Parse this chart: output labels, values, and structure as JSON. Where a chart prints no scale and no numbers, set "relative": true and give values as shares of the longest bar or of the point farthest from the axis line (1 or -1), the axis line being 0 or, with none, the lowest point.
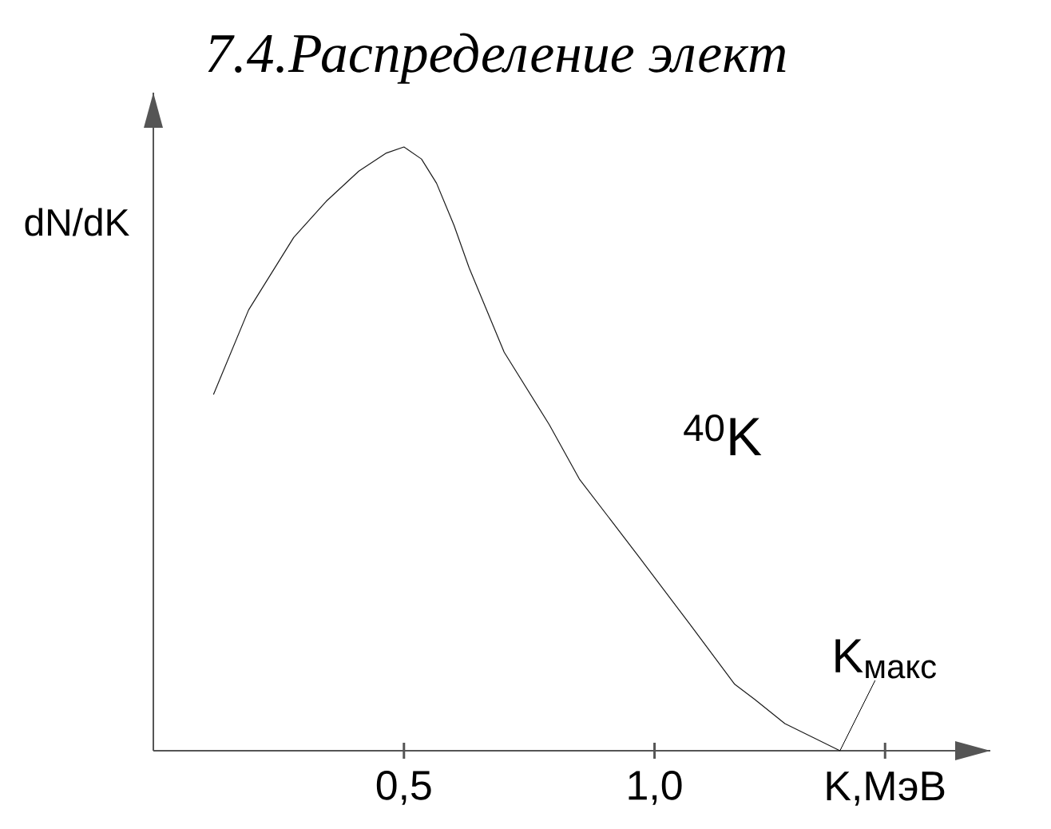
{
  "chart_data": {
    "type": "line",
    "title": "7.4.Распределение   элект",
    "xlabel": "K,МэВ",
    "ylabel": "dN/dK",
    "relative": true,
    "x": [
      0.12,
      0.19,
      0.28,
      0.345,
      0.41,
      0.465,
      0.5,
      0.535,
      0.565,
      0.6,
      0.63,
      0.7,
      0.79,
      0.85,
      0.97,
      1.07,
      1.16,
      1.2,
      1.26,
      1.37
    ],
    "series": [
      {
        "color": "#1a1a1a",
        "values": [
          0.59,
          0.73,
          0.85,
          0.91,
          0.96,
          0.99,
          1.0,
          0.98,
          0.94,
          0.87,
          0.8,
          0.66,
          0.54,
          0.45,
          0.32,
          0.21,
          0.11,
          0.085,
          0.045,
          0.0
        ]
      }
    ],
    "xlim": [
      0,
      1.67
    ],
    "xticks": [
      {
        "value": 0.5,
        "label": "0,5"
      },
      {
        "value": 1.0,
        "label": "1,0"
      },
      {
        "value": 1.46,
        "label": null
      }
    ],
    "annotations": [
      "$^{40}$K",
      {
        "text": "K$_{макс}$",
        "x": 1.37,
        "y": 0
      }
    ],
    "grid": false,
    "marker": "none",
    "line_style": "solid"
  }
}
